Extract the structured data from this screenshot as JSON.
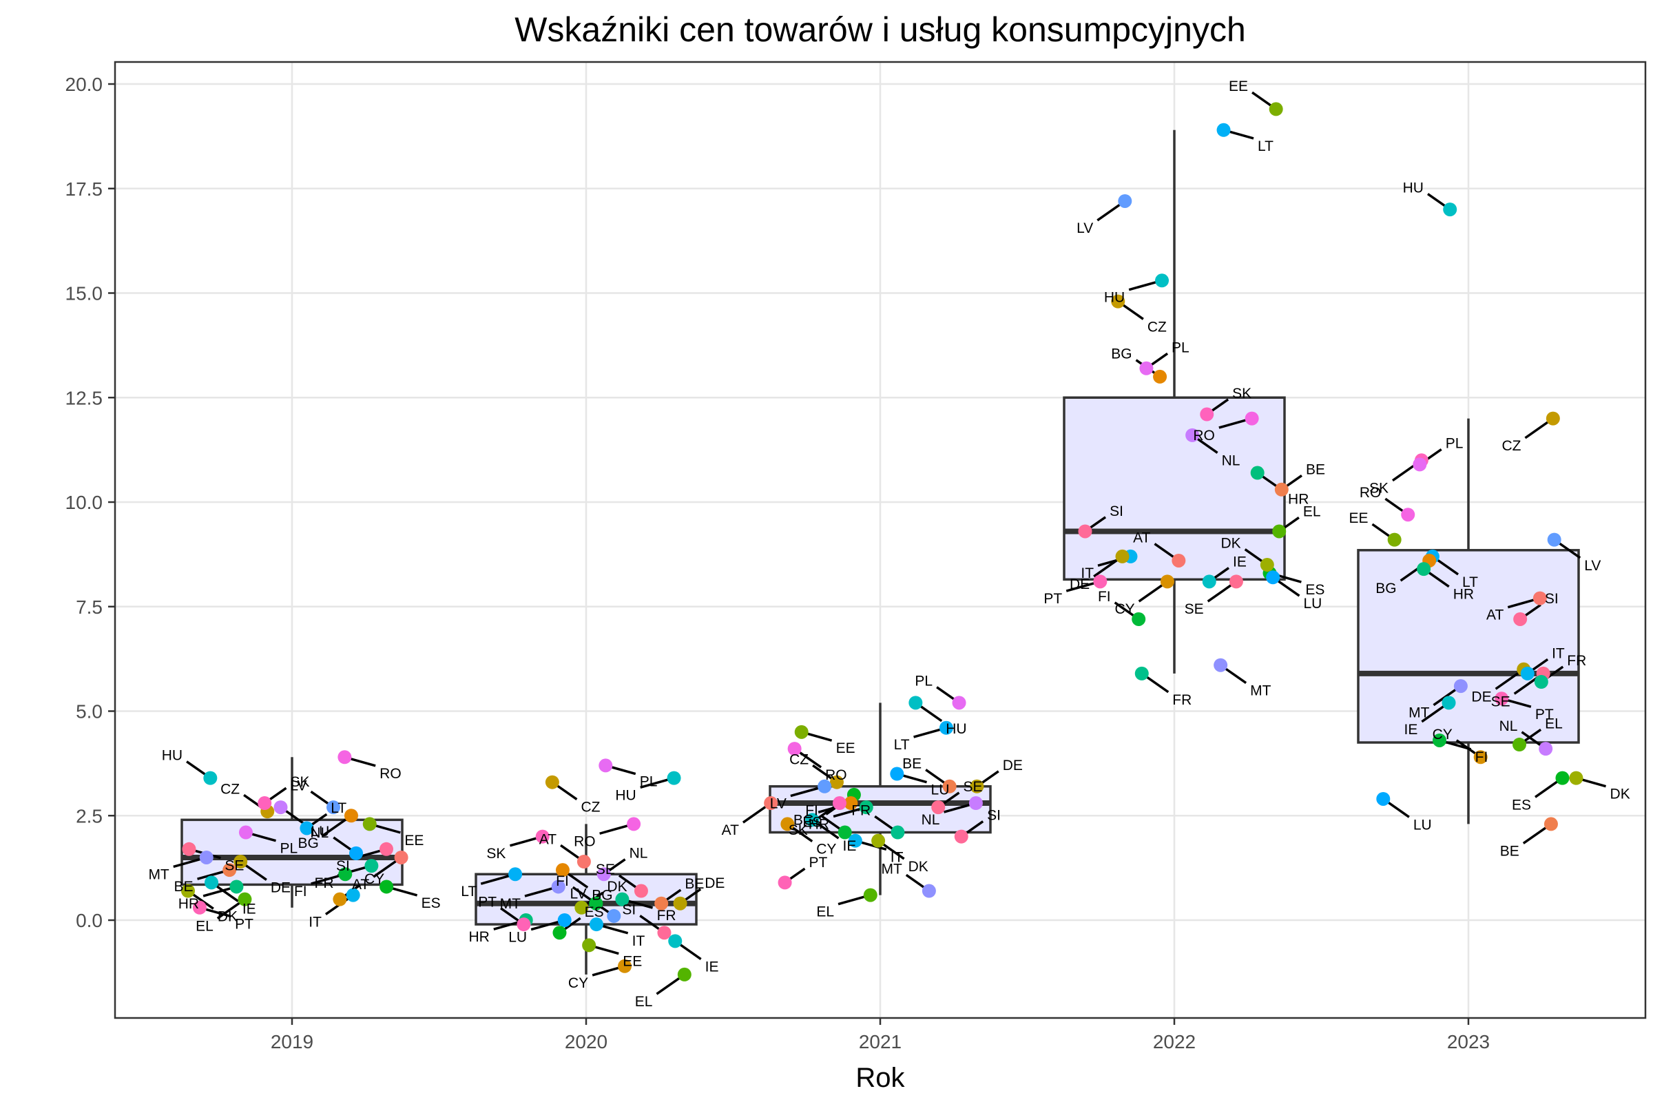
{
  "chart_data": {
    "type": "boxplot",
    "title": "Wskaźniki cen towarów i usług konsumpcyjnych",
    "xlabel": "Rok",
    "ylabel": "",
    "categories": [
      "2019",
      "2020",
      "2021",
      "2022",
      "2023"
    ],
    "ylim": [
      -2.3,
      20.0
    ],
    "y_ticks": [
      "0.0",
      "2.5",
      "5.0",
      "7.5",
      "10.0",
      "12.5",
      "15.0",
      "17.5",
      "20.0"
    ],
    "grid": true,
    "legend": "none",
    "boxes": [
      {
        "category": "2019",
        "q1": 0.85,
        "median": 1.5,
        "q3": 2.4,
        "whisker_low": 0.3,
        "whisker_high": 3.9
      },
      {
        "category": "2020",
        "q1": -0.1,
        "median": 0.4,
        "q3": 1.1,
        "whisker_low": -1.3,
        "whisker_high": 2.3
      },
      {
        "category": "2021",
        "q1": 2.1,
        "median": 2.8,
        "q3": 3.2,
        "whisker_low": 0.6,
        "whisker_high": 5.2
      },
      {
        "category": "2022",
        "q1": 8.15,
        "median": 9.3,
        "q3": 12.5,
        "whisker_low": 5.9,
        "whisker_high": 18.9
      },
      {
        "category": "2023",
        "q1": 4.25,
        "median": 5.9,
        "q3": 8.85,
        "whisker_low": 2.3,
        "whisker_high": 12.0
      }
    ],
    "points": [
      {
        "year": "2019",
        "label": "RO",
        "value": 3.9,
        "color": "#F564E3"
      },
      {
        "year": "2019",
        "label": "HU",
        "value": 3.4,
        "color": "#00BFC4"
      },
      {
        "year": "2019",
        "label": "NL",
        "value": 2.7,
        "color": "#C77CFF"
      },
      {
        "year": "2019",
        "label": "LV",
        "value": 2.7,
        "color": "#619CFF"
      },
      {
        "year": "2019",
        "label": "CZ",
        "value": 2.6,
        "color": "#C49A00"
      },
      {
        "year": "2019",
        "label": "BG",
        "value": 2.5,
        "color": "#E58700"
      },
      {
        "year": "2019",
        "label": "SK",
        "value": 2.8,
        "color": "#FF62BC"
      },
      {
        "year": "2019",
        "label": "EE",
        "value": 2.3,
        "color": "#7CAE00"
      },
      {
        "year": "2019",
        "label": "LT",
        "value": 2.2,
        "color": "#00B0F6"
      },
      {
        "year": "2019",
        "label": "PL",
        "value": 2.1,
        "color": "#E76BF3"
      },
      {
        "year": "2019",
        "label": "AT",
        "value": 1.5,
        "color": "#F8766D"
      },
      {
        "year": "2019",
        "label": "SE",
        "value": 1.7,
        "color": "#FF6C91"
      },
      {
        "year": "2019",
        "label": "SI",
        "value": 1.7,
        "color": "#FF6A98"
      },
      {
        "year": "2019",
        "label": "LU",
        "value": 1.6,
        "color": "#00A9FF"
      },
      {
        "year": "2019",
        "label": "MT",
        "value": 1.5,
        "color": "#8F91FF"
      },
      {
        "year": "2019",
        "label": "DE",
        "value": 1.4,
        "color": "#B79F00"
      },
      {
        "year": "2019",
        "label": "FR",
        "value": 1.3,
        "color": "#00C08B"
      },
      {
        "year": "2019",
        "label": "BE",
        "value": 1.2,
        "color": "#F07E4D"
      },
      {
        "year": "2019",
        "label": "FI",
        "value": 1.1,
        "color": "#00BA38"
      },
      {
        "year": "2019",
        "label": "IE",
        "value": 0.9,
        "color": "#00BFC4"
      },
      {
        "year": "2019",
        "label": "HR",
        "value": 0.8,
        "color": "#00BF7D"
      },
      {
        "year": "2019",
        "label": "ES",
        "value": 0.8,
        "color": "#00B81F"
      },
      {
        "year": "2019",
        "label": "DK",
        "value": 0.7,
        "color": "#9DAF00"
      },
      {
        "year": "2019",
        "label": "IT",
        "value": 0.6,
        "color": "#00B4F0"
      },
      {
        "year": "2019",
        "label": "EL",
        "value": 0.5,
        "color": "#53B400"
      },
      {
        "year": "2019",
        "label": "CY",
        "value": 0.5,
        "color": "#D89000"
      },
      {
        "year": "2019",
        "label": "PT",
        "value": 0.3,
        "color": "#FF63B6"
      },
      {
        "year": "2020",
        "label": "PL",
        "value": 3.7,
        "color": "#E76BF3"
      },
      {
        "year": "2020",
        "label": "HU",
        "value": 3.4,
        "color": "#00BFC4"
      },
      {
        "year": "2020",
        "label": "CZ",
        "value": 3.3,
        "color": "#C49A00"
      },
      {
        "year": "2020",
        "label": "RO",
        "value": 2.3,
        "color": "#F564E3"
      },
      {
        "year": "2020",
        "label": "SK",
        "value": 2.0,
        "color": "#FF62BC"
      },
      {
        "year": "2020",
        "label": "BG",
        "value": 1.2,
        "color": "#E58700"
      },
      {
        "year": "2020",
        "label": "AT",
        "value": 1.4,
        "color": "#F8766D"
      },
      {
        "year": "2020",
        "label": "NL",
        "value": 1.1,
        "color": "#C77CFF"
      },
      {
        "year": "2020",
        "label": "LT",
        "value": 1.1,
        "color": "#00B0F6"
      },
      {
        "year": "2020",
        "label": "SE",
        "value": 0.7,
        "color": "#FF6C91"
      },
      {
        "year": "2020",
        "label": "MT",
        "value": 0.8,
        "color": "#8F91FF"
      },
      {
        "year": "2020",
        "label": "DK",
        "value": 0.3,
        "color": "#9DAF00"
      },
      {
        "year": "2020",
        "label": "FR",
        "value": 0.5,
        "color": "#00C08B"
      },
      {
        "year": "2020",
        "label": "FI",
        "value": 0.4,
        "color": "#00BA38"
      },
      {
        "year": "2020",
        "label": "DE",
        "value": 0.4,
        "color": "#B79F00"
      },
      {
        "year": "2020",
        "label": "BE",
        "value": 0.4,
        "color": "#F07E4D"
      },
      {
        "year": "2020",
        "label": "LV",
        "value": 0.1,
        "color": "#619CFF"
      },
      {
        "year": "2020",
        "label": "HR",
        "value": 0.0,
        "color": "#00BF7D"
      },
      {
        "year": "2020",
        "label": "LU",
        "value": 0.0,
        "color": "#00A9FF"
      },
      {
        "year": "2020",
        "label": "IT",
        "value": -0.1,
        "color": "#00B4F0"
      },
      {
        "year": "2020",
        "label": "PT",
        "value": -0.1,
        "color": "#FF63B6"
      },
      {
        "year": "2020",
        "label": "SI",
        "value": -0.3,
        "color": "#FF6A98"
      },
      {
        "year": "2020",
        "label": "ES",
        "value": -0.3,
        "color": "#00B81F"
      },
      {
        "year": "2020",
        "label": "IE",
        "value": -0.5,
        "color": "#00BFC4"
      },
      {
        "year": "2020",
        "label": "EE",
        "value": -0.6,
        "color": "#7CAE00"
      },
      {
        "year": "2020",
        "label": "CY",
        "value": -1.1,
        "color": "#D89000"
      },
      {
        "year": "2020",
        "label": "EL",
        "value": -1.3,
        "color": "#53B400"
      },
      {
        "year": "2021",
        "label": "HU",
        "value": 5.2,
        "color": "#00BFC4"
      },
      {
        "year": "2021",
        "label": "PL",
        "value": 5.2,
        "color": "#E76BF3"
      },
      {
        "year": "2021",
        "label": "LT",
        "value": 4.6,
        "color": "#00B0F6"
      },
      {
        "year": "2021",
        "label": "EE",
        "value": 4.5,
        "color": "#7CAE00"
      },
      {
        "year": "2021",
        "label": "RO",
        "value": 4.1,
        "color": "#F564E3"
      },
      {
        "year": "2021",
        "label": "LU",
        "value": 3.5,
        "color": "#00A9FF"
      },
      {
        "year": "2021",
        "label": "CZ",
        "value": 3.3,
        "color": "#C49A00"
      },
      {
        "year": "2021",
        "label": "LV",
        "value": 3.2,
        "color": "#619CFF"
      },
      {
        "year": "2021",
        "label": "BE",
        "value": 3.2,
        "color": "#F07E4D"
      },
      {
        "year": "2021",
        "label": "ES",
        "value": 3.0,
        "color": "#00B81F"
      },
      {
        "year": "2021",
        "label": "BG",
        "value": 2.8,
        "color": "#E58700"
      },
      {
        "year": "2021",
        "label": "NL",
        "value": 2.8,
        "color": "#C77CFF"
      },
      {
        "year": "2021",
        "label": "AT",
        "value": 2.8,
        "color": "#F8766D"
      },
      {
        "year": "2021",
        "label": "SK",
        "value": 2.8,
        "color": "#FF62BC"
      },
      {
        "year": "2021",
        "label": "HR",
        "value": 2.7,
        "color": "#00BF7D"
      },
      {
        "year": "2021",
        "label": "SE",
        "value": 2.7,
        "color": "#FF6C91"
      },
      {
        "year": "2021",
        "label": "DE",
        "value": 3.2,
        "color": "#B79F00"
      },
      {
        "year": "2021",
        "label": "CY",
        "value": 2.3,
        "color": "#D89000"
      },
      {
        "year": "2021",
        "label": "IE",
        "value": 2.4,
        "color": "#00BFC4"
      },
      {
        "year": "2021",
        "label": "FR",
        "value": 2.1,
        "color": "#00C08B"
      },
      {
        "year": "2021",
        "label": "FI",
        "value": 2.1,
        "color": "#00BA38"
      },
      {
        "year": "2021",
        "label": "SI",
        "value": 2.0,
        "color": "#FF6A98"
      },
      {
        "year": "2021",
        "label": "DK",
        "value": 1.9,
        "color": "#9DAF00"
      },
      {
        "year": "2021",
        "label": "IT",
        "value": 1.9,
        "color": "#00B4F0"
      },
      {
        "year": "2021",
        "label": "PT",
        "value": 0.9,
        "color": "#FF63B6"
      },
      {
        "year": "2021",
        "label": "MT",
        "value": 0.7,
        "color": "#8F91FF"
      },
      {
        "year": "2021",
        "label": "EL",
        "value": 0.6,
        "color": "#53B400"
      },
      {
        "year": "2022",
        "label": "EE",
        "value": 19.4,
        "color": "#7CAE00"
      },
      {
        "year": "2022",
        "label": "LT",
        "value": 18.9,
        "color": "#00B0F6"
      },
      {
        "year": "2022",
        "label": "LV",
        "value": 17.2,
        "color": "#619CFF"
      },
      {
        "year": "2022",
        "label": "HU",
        "value": 15.3,
        "color": "#00BFC4"
      },
      {
        "year": "2022",
        "label": "CZ",
        "value": 14.8,
        "color": "#C49A00"
      },
      {
        "year": "2022",
        "label": "PL",
        "value": 13.2,
        "color": "#E76BF3"
      },
      {
        "year": "2022",
        "label": "BG",
        "value": 13.0,
        "color": "#E58700"
      },
      {
        "year": "2022",
        "label": "SK",
        "value": 12.1,
        "color": "#FF62BC"
      },
      {
        "year": "2022",
        "label": "RO",
        "value": 12.0,
        "color": "#F564E3"
      },
      {
        "year": "2022",
        "label": "NL",
        "value": 11.6,
        "color": "#C77CFF"
      },
      {
        "year": "2022",
        "label": "HR",
        "value": 10.7,
        "color": "#00BF7D"
      },
      {
        "year": "2022",
        "label": "BE",
        "value": 10.3,
        "color": "#F07E4D"
      },
      {
        "year": "2022",
        "label": "SI",
        "value": 9.3,
        "color": "#FF6A98"
      },
      {
        "year": "2022",
        "label": "EL",
        "value": 9.3,
        "color": "#53B400"
      },
      {
        "year": "2022",
        "label": "IT",
        "value": 8.7,
        "color": "#00B4F0"
      },
      {
        "year": "2022",
        "label": "DE",
        "value": 8.7,
        "color": "#B79F00"
      },
      {
        "year": "2022",
        "label": "AT",
        "value": 8.6,
        "color": "#F8766D"
      },
      {
        "year": "2022",
        "label": "ES",
        "value": 8.3,
        "color": "#00B81F"
      },
      {
        "year": "2022",
        "label": "DK",
        "value": 8.5,
        "color": "#9DAF00"
      },
      {
        "year": "2022",
        "label": "LU",
        "value": 8.2,
        "color": "#00A9FF"
      },
      {
        "year": "2022",
        "label": "PT",
        "value": 8.1,
        "color": "#FF63B6"
      },
      {
        "year": "2022",
        "label": "SE",
        "value": 8.1,
        "color": "#FF6C91"
      },
      {
        "year": "2022",
        "label": "IE",
        "value": 8.1,
        "color": "#00BFC4"
      },
      {
        "year": "2022",
        "label": "CY",
        "value": 8.1,
        "color": "#D89000"
      },
      {
        "year": "2022",
        "label": "FI",
        "value": 7.2,
        "color": "#00BA38"
      },
      {
        "year": "2022",
        "label": "MT",
        "value": 6.1,
        "color": "#8F91FF"
      },
      {
        "year": "2022",
        "label": "FR",
        "value": 5.9,
        "color": "#00C08B"
      },
      {
        "year": "2023",
        "label": "HU",
        "value": 17.0,
        "color": "#00BFC4"
      },
      {
        "year": "2023",
        "label": "CZ",
        "value": 12.0,
        "color": "#C49A00"
      },
      {
        "year": "2023",
        "label": "SK",
        "value": 11.0,
        "color": "#FF62BC"
      },
      {
        "year": "2023",
        "label": "PL",
        "value": 10.9,
        "color": "#E76BF3"
      },
      {
        "year": "2023",
        "label": "RO",
        "value": 9.7,
        "color": "#F564E3"
      },
      {
        "year": "2023",
        "label": "EE",
        "value": 9.1,
        "color": "#7CAE00"
      },
      {
        "year": "2023",
        "label": "LV",
        "value": 9.1,
        "color": "#619CFF"
      },
      {
        "year": "2023",
        "label": "LT",
        "value": 8.7,
        "color": "#00B0F6"
      },
      {
        "year": "2023",
        "label": "BG",
        "value": 8.6,
        "color": "#E58700"
      },
      {
        "year": "2023",
        "label": "HR",
        "value": 8.4,
        "color": "#00BF7D"
      },
      {
        "year": "2023",
        "label": "AT",
        "value": 7.7,
        "color": "#F8766D"
      },
      {
        "year": "2023",
        "label": "SI",
        "value": 7.2,
        "color": "#FF6A98"
      },
      {
        "year": "2023",
        "label": "DE",
        "value": 6.0,
        "color": "#B79F00"
      },
      {
        "year": "2023",
        "label": "IT",
        "value": 5.9,
        "color": "#00B4F0"
      },
      {
        "year": "2023",
        "label": "SE",
        "value": 5.9,
        "color": "#FF6C91"
      },
      {
        "year": "2023",
        "label": "FR",
        "value": 5.7,
        "color": "#00C08B"
      },
      {
        "year": "2023",
        "label": "MT",
        "value": 5.6,
        "color": "#8F91FF"
      },
      {
        "year": "2023",
        "label": "PT",
        "value": 5.3,
        "color": "#FF63B6"
      },
      {
        "year": "2023",
        "label": "IE",
        "value": 5.2,
        "color": "#00BFC4"
      },
      {
        "year": "2023",
        "label": "FI",
        "value": 4.3,
        "color": "#00BA38"
      },
      {
        "year": "2023",
        "label": "EL",
        "value": 4.2,
        "color": "#53B400"
      },
      {
        "year": "2023",
        "label": "NL",
        "value": 4.1,
        "color": "#C77CFF"
      },
      {
        "year": "2023",
        "label": "CY",
        "value": 3.9,
        "color": "#D89000"
      },
      {
        "year": "2023",
        "label": "ES",
        "value": 3.4,
        "color": "#00B81F"
      },
      {
        "year": "2023",
        "label": "DK",
        "value": 3.4,
        "color": "#9DAF00"
      },
      {
        "year": "2023",
        "label": "LU",
        "value": 2.9,
        "color": "#00A9FF"
      },
      {
        "year": "2023",
        "label": "BE",
        "value": 2.3,
        "color": "#F07E4D"
      }
    ]
  }
}
